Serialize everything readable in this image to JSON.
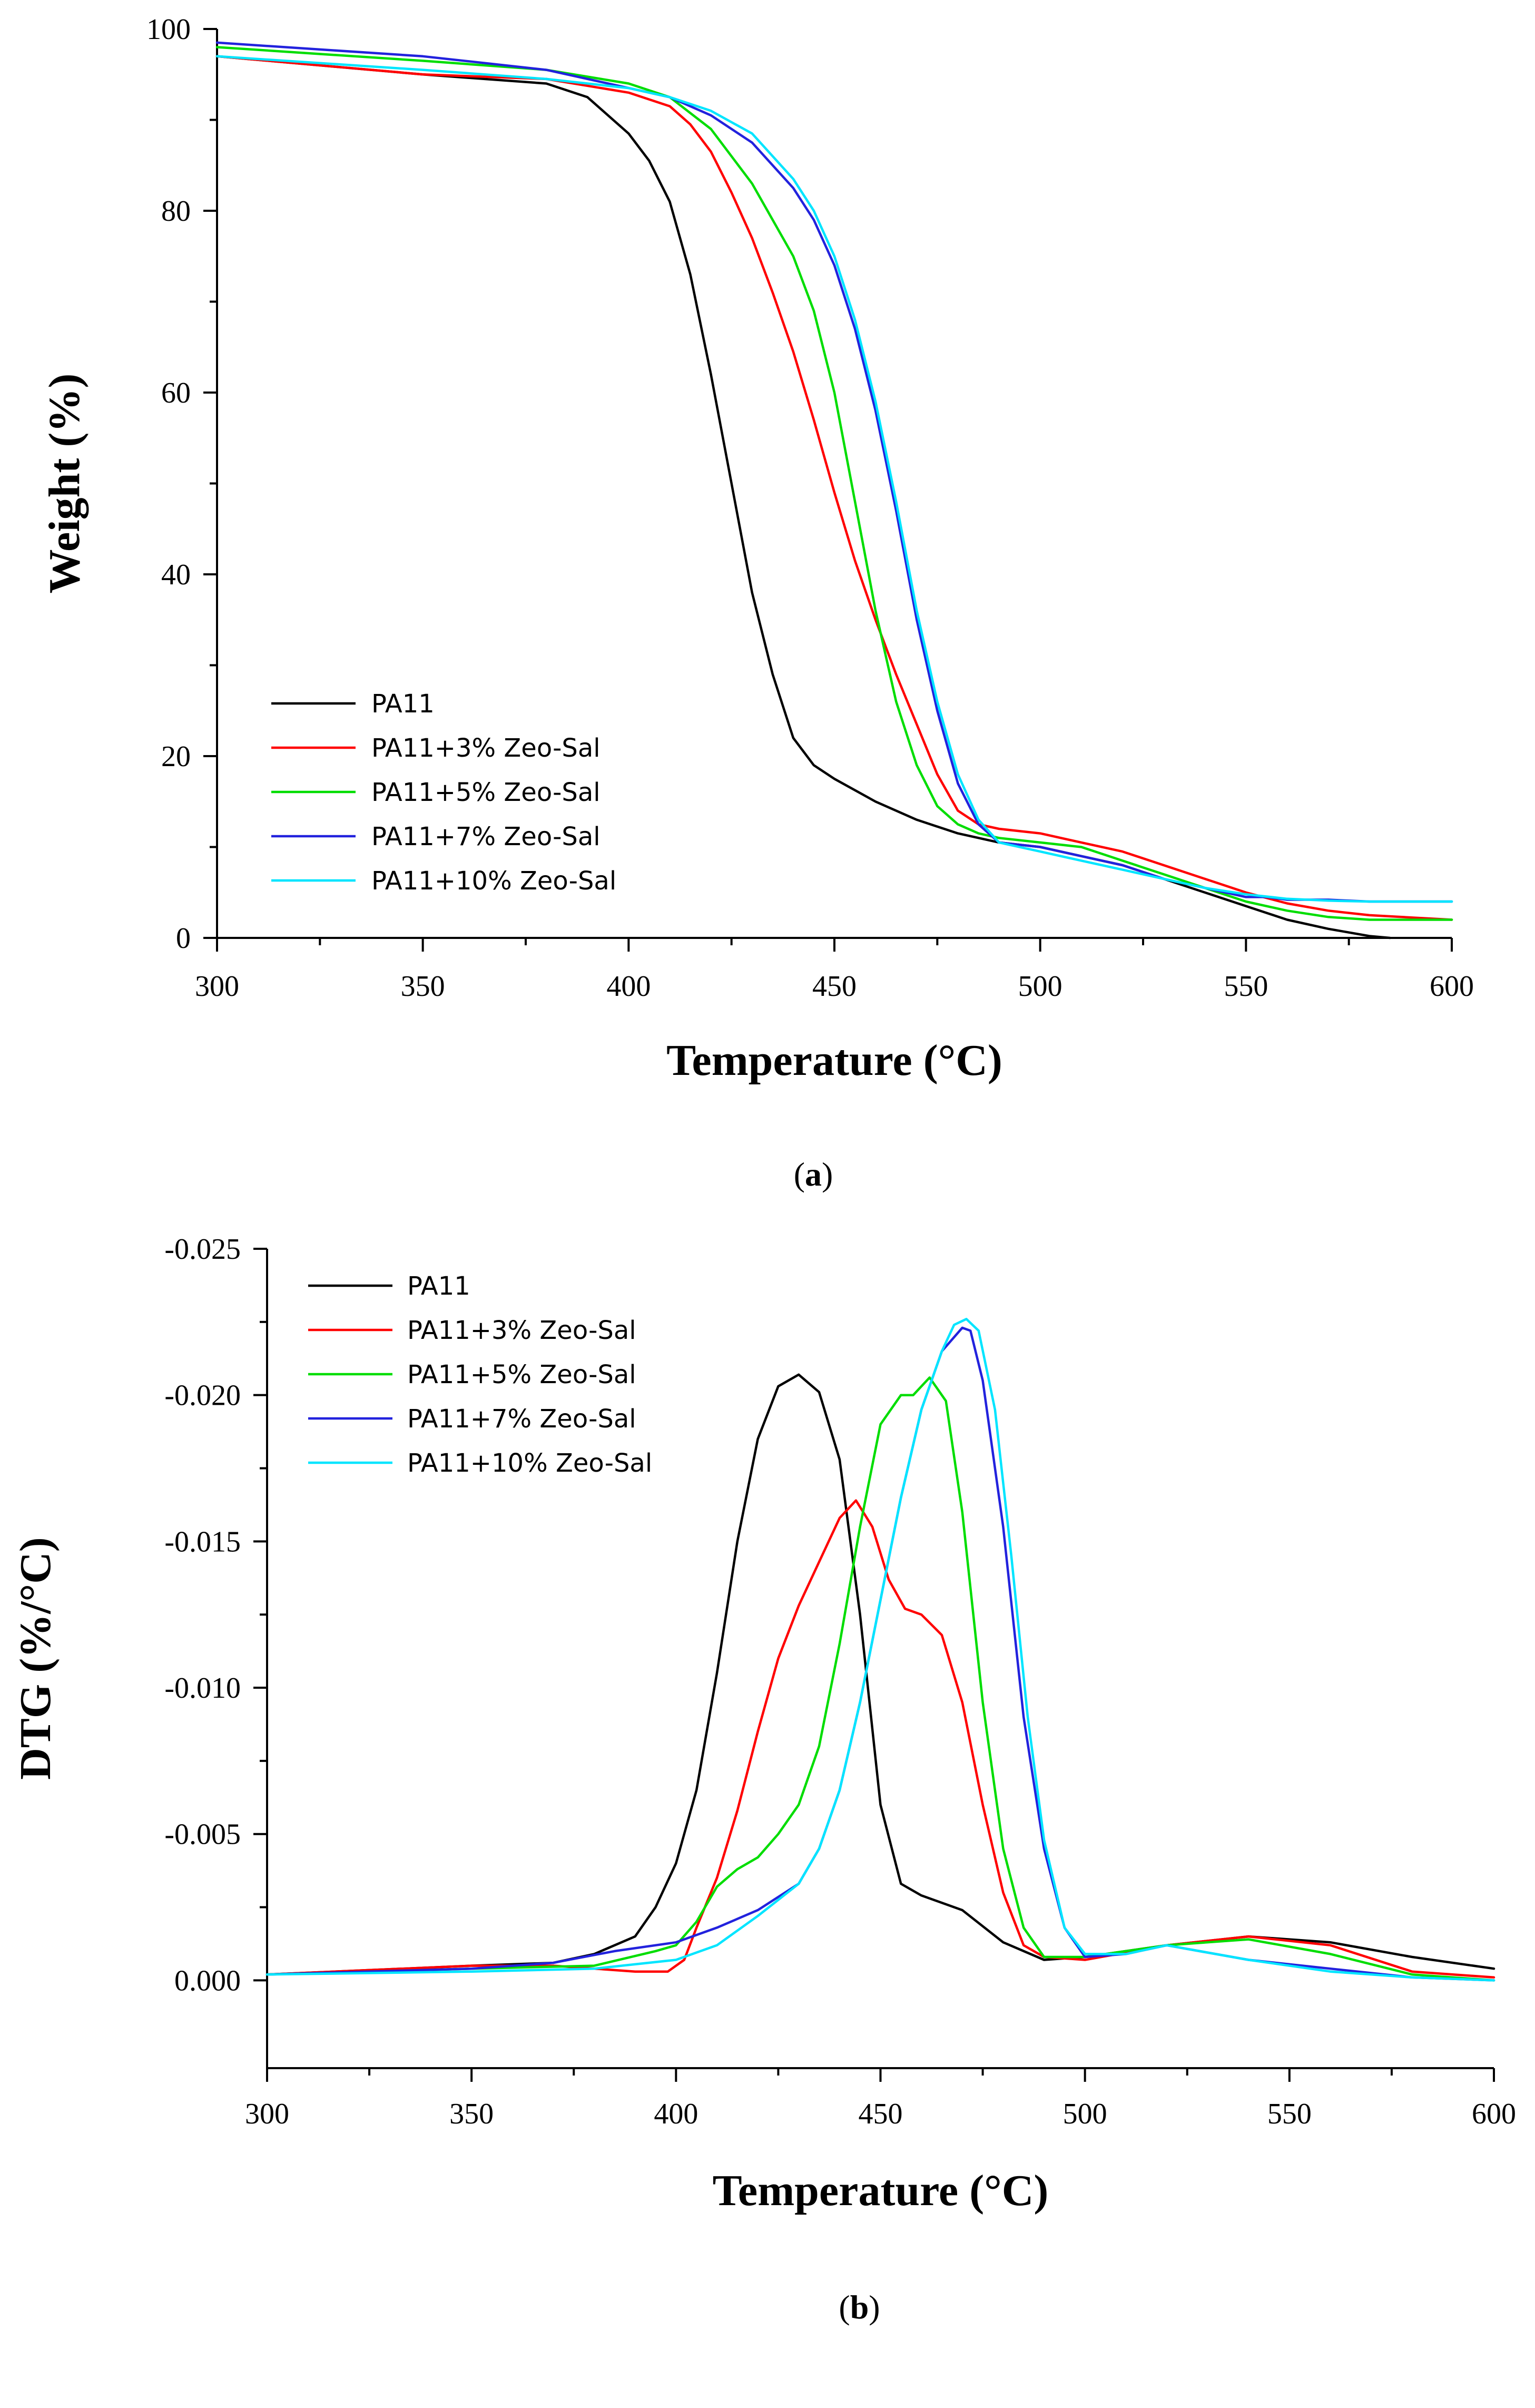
{
  "chart_data": [
    {
      "id": "a",
      "type": "line",
      "caption_label": "a",
      "xlabel": "Temperature (°C)",
      "ylabel": "Weight (%)",
      "xlim": [
        300,
        600
      ],
      "ylim": [
        0,
        100
      ],
      "xticks": [
        300,
        350,
        400,
        450,
        500,
        550,
        600
      ],
      "yticks": [
        0,
        20,
        40,
        60,
        80,
        100
      ],
      "ytick_labels": [
        "0",
        "20",
        "40",
        "60",
        "80",
        "100"
      ],
      "legend_position": "bottom-left",
      "series": [
        {
          "name": "PA11",
          "color": "#000000",
          "x": [
            300,
            350,
            380,
            390,
            400,
            405,
            410,
            415,
            420,
            425,
            430,
            435,
            440,
            445,
            450,
            460,
            470,
            480,
            490,
            500,
            510,
            520,
            530,
            540,
            550,
            560,
            570,
            580,
            585
          ],
          "y": [
            97,
            95,
            94,
            92.5,
            88.5,
            85.5,
            81,
            73,
            62,
            50,
            38,
            29,
            22,
            19,
            17.5,
            15,
            13,
            11.5,
            10.5,
            10,
            9,
            8,
            6.5,
            5,
            3.5,
            2,
            1,
            0.2,
            0
          ]
        },
        {
          "name": "PA11+3% Zeo-Sal",
          "color": "#ff0000",
          "x": [
            300,
            350,
            380,
            400,
            410,
            415,
            420,
            425,
            430,
            435,
            440,
            445,
            450,
            455,
            460,
            465,
            470,
            475,
            480,
            485,
            490,
            500,
            510,
            520,
            530,
            540,
            550,
            560,
            570,
            580,
            600
          ],
          "y": [
            97,
            95,
            94.5,
            93,
            91.5,
            89.5,
            86.5,
            82,
            77,
            71,
            64.5,
            57,
            49,
            41.5,
            35,
            29,
            23.5,
            18,
            14,
            12.5,
            12,
            11.5,
            10.5,
            9.5,
            8,
            6.5,
            5,
            3.8,
            3,
            2.5,
            2
          ]
        },
        {
          "name": "PA11+5% Zeo-Sal",
          "color": "#00dd00",
          "x": [
            300,
            350,
            380,
            400,
            410,
            420,
            430,
            440,
            445,
            450,
            455,
            460,
            465,
            470,
            475,
            480,
            485,
            490,
            500,
            510,
            520,
            530,
            540,
            550,
            560,
            570,
            580,
            600
          ],
          "y": [
            98,
            96.5,
            95.5,
            94,
            92.5,
            89,
            83,
            75,
            69,
            60,
            48,
            36,
            26,
            19,
            14.5,
            12.5,
            11.5,
            11,
            10.5,
            10,
            8.5,
            7,
            5.5,
            4,
            3,
            2.3,
            2,
            2
          ]
        },
        {
          "name": "PA11+7% Zeo-Sal",
          "color": "#2222dd",
          "x": [
            300,
            350,
            380,
            400,
            410,
            420,
            430,
            440,
            445,
            450,
            455,
            460,
            465,
            470,
            475,
            480,
            485,
            490,
            500,
            510,
            520,
            530,
            540,
            550,
            555,
            560,
            570,
            580,
            600
          ],
          "y": [
            98.5,
            97,
            95.5,
            93.5,
            92.5,
            90.5,
            87.5,
            82.5,
            79,
            74,
            67,
            58,
            47,
            35,
            25,
            17,
            12.5,
            10.5,
            10,
            9,
            8,
            6.5,
            5.5,
            4.5,
            4.5,
            4.2,
            4.2,
            4,
            4
          ]
        },
        {
          "name": "PA11+10% Zeo-Sal",
          "color": "#00e5ff",
          "x": [
            300,
            350,
            380,
            400,
            410,
            420,
            430,
            440,
            445,
            450,
            455,
            460,
            465,
            470,
            475,
            480,
            485,
            490,
            500,
            510,
            520,
            530,
            540,
            550,
            560,
            570,
            580,
            600
          ],
          "y": [
            97,
            95.5,
            94.5,
            93.5,
            92.5,
            91,
            88.5,
            83.5,
            80,
            75,
            68,
            59,
            48,
            36,
            26,
            18,
            13,
            10.5,
            9.5,
            8.5,
            7.5,
            6.5,
            5.5,
            4.8,
            4.3,
            4.1,
            4,
            4
          ]
        }
      ]
    },
    {
      "id": "b",
      "type": "line",
      "caption_label": "b",
      "xlabel": "Temperature (°C)",
      "ylabel": "DTG (%/°C)",
      "xlim": [
        300,
        600
      ],
      "ylim": [
        0.003,
        -0.025
      ],
      "xticks": [
        300,
        350,
        400,
        450,
        500,
        550,
        600
      ],
      "yticks": [
        -0.025,
        -0.02,
        -0.015,
        -0.01,
        -0.005,
        0.0
      ],
      "ytick_labels": [
        "-0.025",
        "-0.020",
        "-0.015",
        "-0.010",
        "-0.005",
        "0.000"
      ],
      "legend_position": "top-left",
      "series": [
        {
          "name": "PA11",
          "color": "#000000",
          "x": [
            300,
            350,
            370,
            380,
            390,
            395,
            400,
            405,
            410,
            415,
            420,
            425,
            430,
            435,
            440,
            445,
            450,
            455,
            460,
            470,
            480,
            490,
            500,
            520,
            540,
            560,
            580,
            600
          ],
          "y": [
            -0.0002,
            -0.0005,
            -0.0006,
            -0.0009,
            -0.0015,
            -0.0025,
            -0.004,
            -0.0065,
            -0.0105,
            -0.015,
            -0.0185,
            -0.0203,
            -0.0207,
            -0.0201,
            -0.0178,
            -0.0125,
            -0.006,
            -0.0033,
            -0.0029,
            -0.0024,
            -0.0013,
            -0.0007,
            -0.0008,
            -0.0012,
            -0.0015,
            -0.0013,
            -0.0008,
            -0.0004
          ]
        },
        {
          "name": "PA11+3% Zeo-Sal",
          "color": "#ff0000",
          "x": [
            300,
            350,
            370,
            390,
            398,
            402,
            405,
            410,
            415,
            420,
            425,
            430,
            435,
            440,
            444,
            448,
            452,
            456,
            460,
            465,
            470,
            475,
            480,
            485,
            490,
            500,
            520,
            540,
            560,
            580,
            600
          ],
          "y": [
            -0.0002,
            -0.0005,
            -0.0005,
            -0.0003,
            -0.0003,
            -0.0007,
            -0.0018,
            -0.0035,
            -0.0058,
            -0.0085,
            -0.011,
            -0.0128,
            -0.0143,
            -0.0158,
            -0.0164,
            -0.0155,
            -0.0137,
            -0.0127,
            -0.0125,
            -0.0118,
            -0.0095,
            -0.006,
            -0.003,
            -0.0012,
            -0.0008,
            -0.0007,
            -0.0012,
            -0.0015,
            -0.0012,
            -0.0003,
            -0.0001
          ]
        },
        {
          "name": "PA11+5% Zeo-Sal",
          "color": "#00dd00",
          "x": [
            300,
            350,
            380,
            395,
            400,
            405,
            410,
            415,
            420,
            425,
            430,
            435,
            440,
            445,
            450,
            455,
            458,
            462,
            466,
            470,
            475,
            480,
            485,
            490,
            500,
            520,
            540,
            560,
            580,
            600
          ],
          "y": [
            -0.0002,
            -0.0004,
            -0.0005,
            -0.001,
            -0.0012,
            -0.002,
            -0.0032,
            -0.0038,
            -0.0042,
            -0.005,
            -0.006,
            -0.008,
            -0.0115,
            -0.0155,
            -0.019,
            -0.02,
            -0.02,
            -0.0206,
            -0.0198,
            -0.016,
            -0.0095,
            -0.0045,
            -0.0018,
            -0.0008,
            -0.0008,
            -0.0012,
            -0.0014,
            -0.0009,
            -0.0002,
            0
          ]
        },
        {
          "name": "PA11+7% Zeo-Sal",
          "color": "#2222dd",
          "x": [
            300,
            350,
            370,
            385,
            400,
            410,
            420,
            430,
            435,
            440,
            445,
            450,
            455,
            460,
            465,
            470,
            472,
            475,
            480,
            485,
            490,
            495,
            500,
            510,
            520,
            540,
            560,
            580,
            600
          ],
          "y": [
            -0.0002,
            -0.0004,
            -0.0006,
            -0.001,
            -0.0013,
            -0.0018,
            -0.0024,
            -0.0033,
            -0.0045,
            -0.0065,
            -0.0095,
            -0.013,
            -0.0165,
            -0.0195,
            -0.0215,
            -0.0223,
            -0.0222,
            -0.0205,
            -0.0155,
            -0.009,
            -0.0045,
            -0.0018,
            -0.0008,
            -0.0009,
            -0.0012,
            -0.0007,
            -0.0004,
            -0.0001,
            0
          ]
        },
        {
          "name": "PA11+10% Zeo-Sal",
          "color": "#00e5ff",
          "x": [
            300,
            350,
            380,
            400,
            410,
            420,
            430,
            435,
            440,
            445,
            450,
            455,
            460,
            465,
            468,
            471,
            474,
            478,
            482,
            486,
            490,
            495,
            500,
            510,
            520,
            540,
            560,
            580,
            600
          ],
          "y": [
            -0.0002,
            -0.0003,
            -0.0004,
            -0.0007,
            -0.0012,
            -0.0022,
            -0.0033,
            -0.0045,
            -0.0065,
            -0.0095,
            -0.013,
            -0.0165,
            -0.0195,
            -0.0215,
            -0.0224,
            -0.0226,
            -0.0222,
            -0.0195,
            -0.0145,
            -0.009,
            -0.0048,
            -0.0018,
            -0.0009,
            -0.0009,
            -0.0012,
            -0.0007,
            -0.0003,
            -0.0001,
            0
          ]
        }
      ]
    }
  ]
}
